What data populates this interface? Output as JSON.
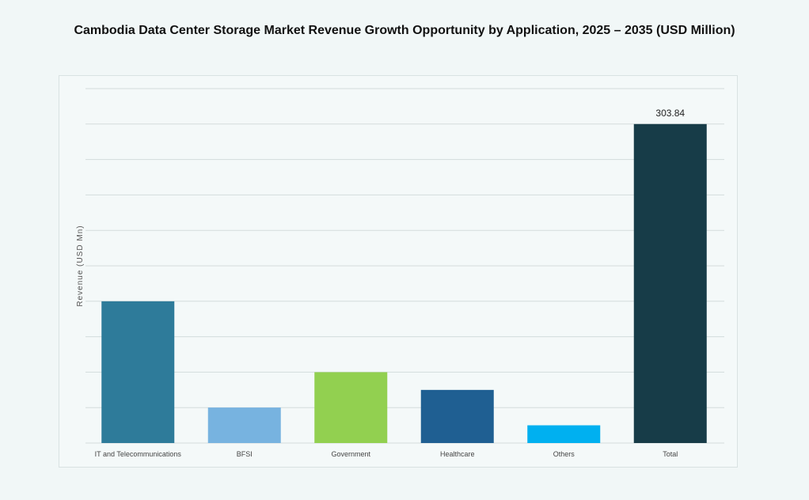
{
  "chart_data": {
    "type": "bar",
    "title": "Cambodia Data Center Storage Market Revenue Growth Opportunity by Application, 2025 – 2035 (USD Million)",
    "xlabel": "",
    "ylabel": "Revenue (USD Mn)",
    "categories": [
      "IT and Telecommunications",
      "BFSI",
      "Government",
      "Healthcare",
      "Others",
      "Total"
    ],
    "values": [
      135.0,
      33.8,
      67.5,
      50.6,
      16.9,
      303.84
    ],
    "data_labels": [
      "",
      "",
      "",
      "",
      "",
      "303.84"
    ],
    "colors": [
      "#2e7b9a",
      "#77b3e0",
      "#92d050",
      "#1f5f92",
      "#00b0f0",
      "#173c48"
    ],
    "ylim": [
      0,
      337.6
    ],
    "grid": true,
    "y_tick_labels_shown": false
  }
}
